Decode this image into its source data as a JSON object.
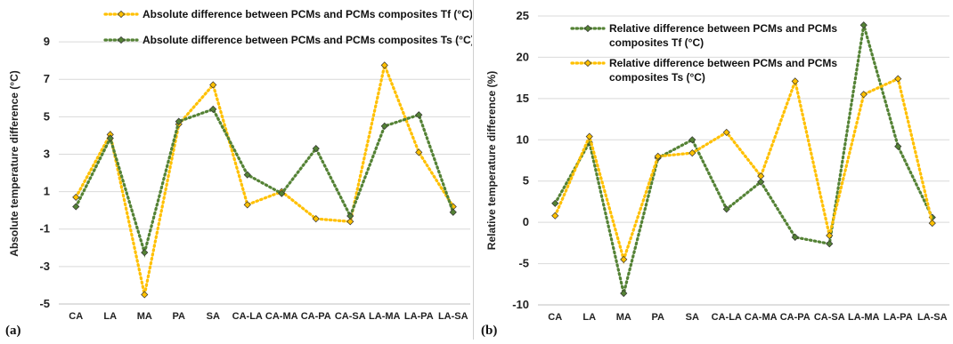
{
  "chart_data": [
    {
      "type": "line",
      "panel_label": "(a)",
      "ylabel": "Absolute temperature difference (°C)",
      "categories": [
        "CA",
        "LA",
        "MA",
        "PA",
        "SA",
        "CA-LA",
        "CA-MA",
        "CA-PA",
        "CA-SA",
        "LA-MA",
        "LA-PA",
        "LA-SA"
      ],
      "ylim": [
        -5,
        10
      ],
      "yticks": [
        -5,
        -3,
        -1,
        1,
        3,
        5,
        7,
        9
      ],
      "grid": true,
      "legend_position": "top-right",
      "series": [
        {
          "name": "Absolute difference between PCMs and PCMs composites Tf (°C)",
          "color": "#FFC000",
          "values": [
            0.7,
            4.05,
            -4.5,
            4.6,
            6.7,
            0.3,
            1.0,
            -0.45,
            -0.6,
            7.75,
            3.1,
            0.2
          ]
        },
        {
          "name": "Absolute difference between PCMs and PCMs composites Ts (°C)",
          "color": "#548235",
          "values": [
            0.2,
            3.85,
            -2.25,
            4.75,
            5.4,
            1.9,
            0.9,
            3.3,
            -0.3,
            4.5,
            5.1,
            -0.1
          ]
        }
      ]
    },
    {
      "type": "line",
      "panel_label": "(b)",
      "ylabel": "Relative temperature difference (%)",
      "categories": [
        "CA",
        "LA",
        "MA",
        "PA",
        "SA",
        "CA-LA",
        "CA-MA",
        "CA-PA",
        "CA-SA",
        "LA-MA",
        "LA-PA",
        "LA-SA"
      ],
      "ylim": [
        -10,
        25
      ],
      "yticks": [
        -10,
        -5,
        0,
        5,
        10,
        15,
        20,
        25
      ],
      "grid": true,
      "legend_position": "top-left",
      "series": [
        {
          "name": "Relative difference between PCMs and PCMs composites Tf (°C)",
          "color": "#548235",
          "values": [
            2.3,
            9.7,
            -8.6,
            7.8,
            10.0,
            1.6,
            4.9,
            -1.8,
            -2.6,
            23.9,
            9.2,
            0.6
          ]
        },
        {
          "name": "Relative difference between PCMs and PCMs composites Ts (°C)",
          "color": "#FFC000",
          "values": [
            0.8,
            10.4,
            -4.5,
            8.0,
            8.4,
            10.9,
            5.6,
            17.1,
            -1.6,
            15.5,
            17.4,
            -0.1
          ]
        }
      ]
    }
  ]
}
